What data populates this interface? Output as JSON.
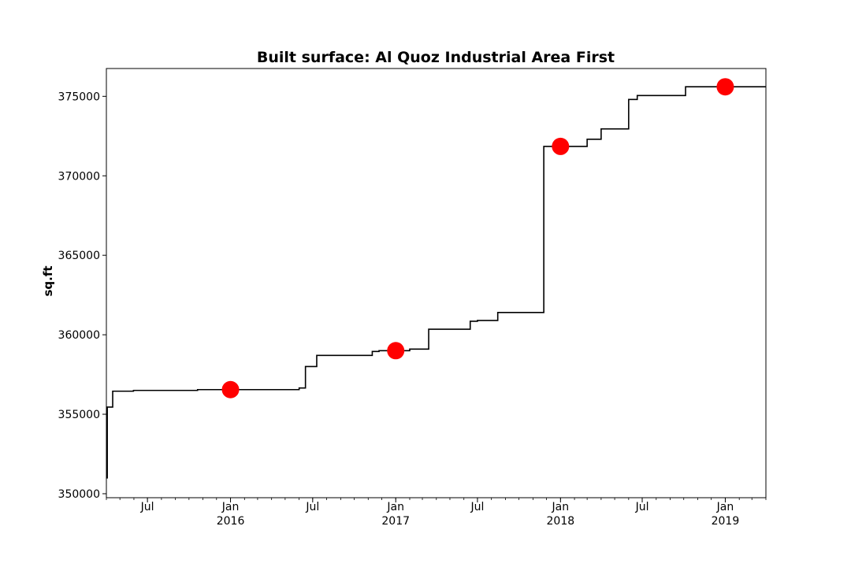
{
  "chart_data": {
    "type": "line",
    "title": "Built surface: Al Quoz Industrial Area First",
    "xlabel": "",
    "ylabel": "sq.ft",
    "xlim": [
      "2015-04-01",
      "2019-04-01"
    ],
    "ylim": [
      349750,
      376750
    ],
    "yticks": [
      350000,
      355000,
      360000,
      365000,
      370000,
      375000
    ],
    "ytick_labels": [
      "350000",
      "355000",
      "360000",
      "365000",
      "370000",
      "375000"
    ],
    "xticks": [
      {
        "date": "2015-07-01",
        "label": "Jul",
        "sublabel": ""
      },
      {
        "date": "2016-01-01",
        "label": "Jan",
        "sublabel": "2016"
      },
      {
        "date": "2016-07-01",
        "label": "Jul",
        "sublabel": ""
      },
      {
        "date": "2017-01-01",
        "label": "Jan",
        "sublabel": "2017"
      },
      {
        "date": "2017-07-01",
        "label": "Jul",
        "sublabel": ""
      },
      {
        "date": "2018-01-01",
        "label": "Jan",
        "sublabel": "2018"
      },
      {
        "date": "2018-07-01",
        "label": "Jul",
        "sublabel": ""
      },
      {
        "date": "2019-01-01",
        "label": "Jan",
        "sublabel": "2019"
      }
    ],
    "grid": false,
    "series": [
      {
        "name": "",
        "color": "#000000",
        "step": "post",
        "points": [
          [
            "2015-04-01",
            351000
          ],
          [
            "2015-04-03",
            355450
          ],
          [
            "2015-04-15",
            356450
          ],
          [
            "2015-05-31",
            356500
          ],
          [
            "2015-10-20",
            356550
          ],
          [
            "2016-06-01",
            356650
          ],
          [
            "2016-06-15",
            358000
          ],
          [
            "2016-07-10",
            358700
          ],
          [
            "2016-11-10",
            358950
          ],
          [
            "2016-11-25",
            359000
          ],
          [
            "2017-02-01",
            359100
          ],
          [
            "2017-03-15",
            360350
          ],
          [
            "2017-06-15",
            360850
          ],
          [
            "2017-07-01",
            360900
          ],
          [
            "2017-08-15",
            361400
          ],
          [
            "2017-11-25",
            371850
          ],
          [
            "2018-03-01",
            372300
          ],
          [
            "2018-04-01",
            372950
          ],
          [
            "2018-06-01",
            374800
          ],
          [
            "2018-06-20",
            375050
          ],
          [
            "2018-10-05",
            375600
          ],
          [
            "2019-04-01",
            375600
          ]
        ]
      },
      {
        "name": "",
        "type": "scatter",
        "color": "#ff0000",
        "points": [
          [
            "2016-01-01",
            356550
          ],
          [
            "2017-01-01",
            359000
          ],
          [
            "2018-01-01",
            371850
          ],
          [
            "2019-01-01",
            375600
          ]
        ]
      }
    ]
  }
}
